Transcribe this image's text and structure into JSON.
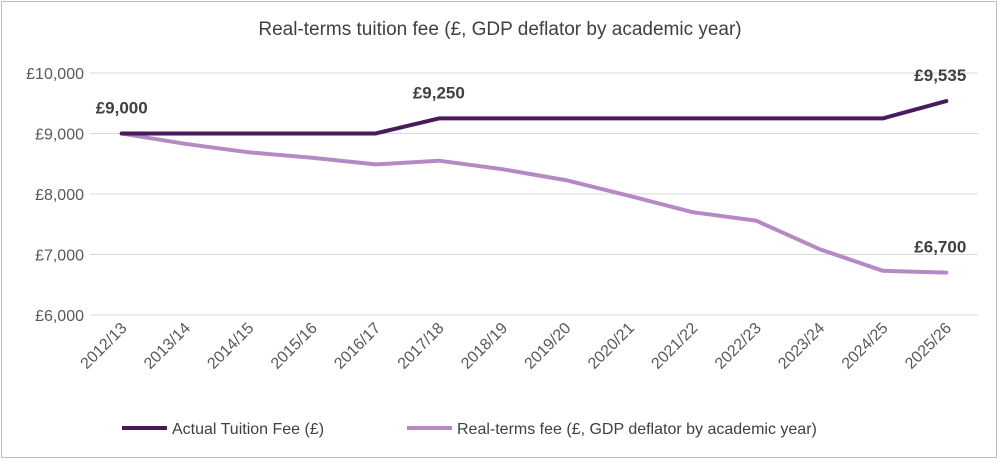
{
  "chart_data": {
    "type": "line",
    "title": "Real-terms tuition fee (£, GDP deflator by academic year)",
    "xlabel": "",
    "ylabel": "",
    "ylim": [
      6000,
      10000
    ],
    "yticks": [
      6000,
      7000,
      8000,
      9000,
      10000
    ],
    "ytick_labels": [
      "£6,000",
      "£7,000",
      "£8,000",
      "£9,000",
      "£10,000"
    ],
    "grid": true,
    "legend_position": "bottom",
    "categories": [
      "2012/13",
      "2013/14",
      "2014/15",
      "2015/16",
      "2016/17",
      "2017/18",
      "2018/19",
      "2019/20",
      "2020/21",
      "2021/22",
      "2022/23",
      "2023/24",
      "2024/25",
      "2025/26"
    ],
    "series": [
      {
        "name": "Actual Tuition Fee (£)",
        "color": "#4b1a5c",
        "values": [
          9000,
          9000,
          9000,
          9000,
          9000,
          9250,
          9250,
          9250,
          9250,
          9250,
          9250,
          9250,
          9250,
          9535
        ]
      },
      {
        "name": "Real-terms fee (£, GDP deflator by academic year)",
        "color": "#b58ac4",
        "values": [
          9000,
          8830,
          8690,
          8600,
          8490,
          8550,
          8410,
          8230,
          7970,
          7700,
          7560,
          7090,
          6730,
          6700
        ]
      }
    ],
    "annotations": [
      {
        "text": "£9,000",
        "series": 0,
        "index": 0
      },
      {
        "text": "£9,250",
        "series": 0,
        "index": 5
      },
      {
        "text": "£9,535",
        "series": 0,
        "index": 13
      },
      {
        "text": "£6,700",
        "series": 1,
        "index": 13
      }
    ]
  }
}
